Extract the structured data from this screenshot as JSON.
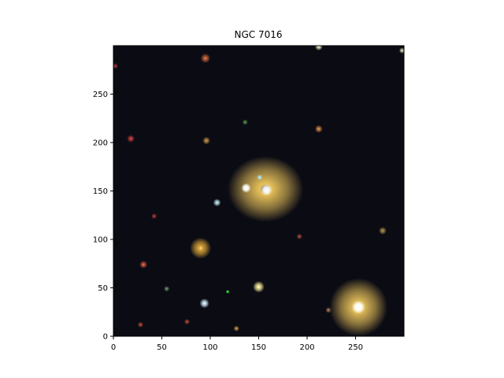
{
  "chart_data": {
    "type": "image",
    "title": "NGC 7016",
    "xlabel": "",
    "ylabel": "",
    "xlim": [
      0,
      300
    ],
    "ylim": [
      0,
      300
    ],
    "xticks": [
      0,
      50,
      100,
      150,
      200,
      250
    ],
    "yticks": [
      0,
      50,
      100,
      150,
      200,
      250
    ],
    "background_color": "#0b0b14",
    "sources": [
      {
        "x": 157,
        "y": 152,
        "r": 34,
        "color": "#e8c25a",
        "kind": "galaxy"
      },
      {
        "x": 137,
        "y": 153,
        "r": 5,
        "color": "#ffffff",
        "kind": "core"
      },
      {
        "x": 158,
        "y": 151,
        "r": 6,
        "color": "#ffffff",
        "kind": "core"
      },
      {
        "x": 151,
        "y": 164,
        "r": 3,
        "color": "#aee3ff",
        "kind": "star"
      },
      {
        "x": 253,
        "y": 30,
        "r": 30,
        "color": "#e8c25a",
        "kind": "star"
      },
      {
        "x": 253,
        "y": 30,
        "r": 7,
        "color": "#ffffff",
        "kind": "core"
      },
      {
        "x": 90,
        "y": 91,
        "r": 11,
        "color": "#e0a83a",
        "kind": "star"
      },
      {
        "x": 150,
        "y": 51,
        "r": 6,
        "color": "#fff2a0",
        "kind": "star"
      },
      {
        "x": 94,
        "y": 34,
        "r": 5,
        "color": "#d8f6ff",
        "kind": "star"
      },
      {
        "x": 107,
        "y": 138,
        "r": 4,
        "color": "#bde8f0",
        "kind": "star"
      },
      {
        "x": 95,
        "y": 287,
        "r": 5,
        "color": "#c8643a",
        "kind": "star"
      },
      {
        "x": 212,
        "y": 214,
        "r": 4,
        "color": "#d08040",
        "kind": "star"
      },
      {
        "x": 96,
        "y": 202,
        "r": 4,
        "color": "#b88840",
        "kind": "star"
      },
      {
        "x": 18,
        "y": 204,
        "r": 4,
        "color": "#c03838",
        "kind": "star"
      },
      {
        "x": 31,
        "y": 74,
        "r": 4,
        "color": "#d05838",
        "kind": "star"
      },
      {
        "x": 278,
        "y": 109,
        "r": 4,
        "color": "#a08840",
        "kind": "star"
      },
      {
        "x": 212,
        "y": 299,
        "r": 4,
        "color": "#e8e8c0",
        "kind": "star"
      },
      {
        "x": 118,
        "y": 46,
        "r": 2,
        "color": "#30ff30",
        "kind": "star"
      },
      {
        "x": 127,
        "y": 8,
        "r": 3,
        "color": "#c88a3a",
        "kind": "star"
      },
      {
        "x": 28,
        "y": 12,
        "r": 3,
        "color": "#b04030",
        "kind": "star"
      },
      {
        "x": 55,
        "y": 49,
        "r": 3,
        "color": "#608860",
        "kind": "star"
      },
      {
        "x": 222,
        "y": 27,
        "r": 3,
        "color": "#a07050",
        "kind": "star"
      },
      {
        "x": 192,
        "y": 103,
        "r": 3,
        "color": "#a04030",
        "kind": "star"
      },
      {
        "x": 42,
        "y": 124,
        "r": 3,
        "color": "#a03030",
        "kind": "star"
      },
      {
        "x": 136,
        "y": 221,
        "r": 3,
        "color": "#508040",
        "kind": "star"
      },
      {
        "x": 2,
        "y": 279,
        "r": 3,
        "color": "#903030",
        "kind": "star"
      },
      {
        "x": 298,
        "y": 295,
        "r": 3,
        "color": "#d8d8b0",
        "kind": "star"
      },
      {
        "x": 76,
        "y": 15,
        "r": 3,
        "color": "#a04030",
        "kind": "star"
      }
    ]
  }
}
